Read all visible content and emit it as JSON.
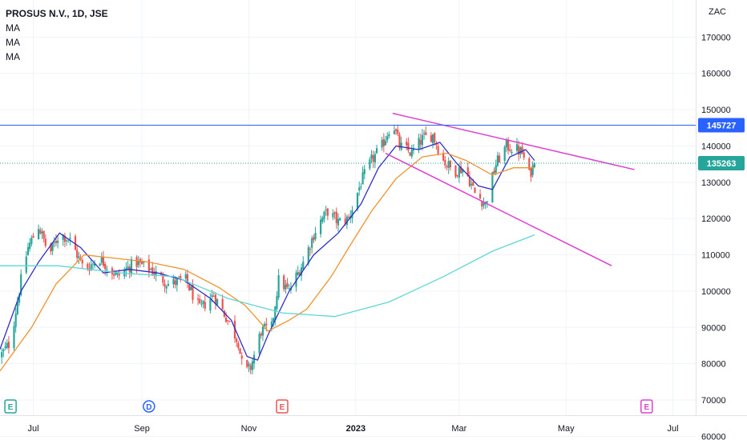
{
  "header": {
    "title": "PROSUS N.V., 1D, JSE",
    "indicators": [
      "MA",
      "MA",
      "MA"
    ]
  },
  "chart_data": {
    "type": "candlestick",
    "currency": "ZAC",
    "y_ticks": [
      60000,
      70000,
      80000,
      90000,
      100000,
      110000,
      120000,
      130000,
      140000,
      150000,
      160000,
      170000
    ],
    "y_range": [
      57000,
      180000
    ],
    "x_labels": [
      {
        "label": "Jul",
        "date": "2022-07-01",
        "bold": false
      },
      {
        "label": "Sep",
        "date": "2022-09-01",
        "bold": false
      },
      {
        "label": "Nov",
        "date": "2022-11-01",
        "bold": false
      },
      {
        "label": "2023",
        "date": "2023-01-01",
        "bold": true
      },
      {
        "label": "Mar",
        "date": "2023-03-01",
        "bold": false
      },
      {
        "label": "May",
        "date": "2023-05-01",
        "bold": false
      },
      {
        "label": "Jul",
        "date": "2023-07-01",
        "bold": false
      }
    ],
    "x_range": [
      "2022-06-12",
      "2023-07-14"
    ],
    "horizontal_line": {
      "value": 145727,
      "label": "145727",
      "color": "#2962ff"
    },
    "last_price": {
      "value": 135263,
      "label": "135263",
      "color": "#26a69a"
    },
    "price_path": [
      [
        "2022-06-12",
        82000
      ],
      [
        "2022-06-18",
        86000
      ],
      [
        "2022-06-24",
        103000
      ],
      [
        "2022-06-28",
        112000
      ],
      [
        "2022-07-04",
        118000
      ],
      [
        "2022-07-10",
        110000
      ],
      [
        "2022-07-16",
        116000
      ],
      [
        "2022-07-22",
        114000
      ],
      [
        "2022-07-30",
        106000
      ],
      [
        "2022-08-08",
        109000
      ],
      [
        "2022-08-18",
        104000
      ],
      [
        "2022-08-28",
        108000
      ],
      [
        "2022-09-06",
        106000
      ],
      [
        "2022-09-16",
        102000
      ],
      [
        "2022-09-26",
        103000
      ],
      [
        "2022-10-04",
        95000
      ],
      [
        "2022-10-12",
        99000
      ],
      [
        "2022-10-20",
        92000
      ],
      [
        "2022-10-26",
        86000
      ],
      [
        "2022-10-29",
        77000
      ],
      [
        "2022-11-02",
        79000
      ],
      [
        "2022-11-08",
        89000
      ],
      [
        "2022-11-14",
        90000
      ],
      [
        "2022-11-18",
        103000
      ],
      [
        "2022-11-24",
        100000
      ],
      [
        "2022-12-02",
        108000
      ],
      [
        "2022-12-10",
        118000
      ],
      [
        "2022-12-16",
        122000
      ],
      [
        "2022-12-22",
        119000
      ],
      [
        "2022-12-28",
        120000
      ],
      [
        "2023-01-04",
        130000
      ],
      [
        "2023-01-10",
        136000
      ],
      [
        "2023-01-16",
        140000
      ],
      [
        "2023-01-22",
        147000
      ],
      [
        "2023-01-26",
        140000
      ],
      [
        "2023-02-02",
        138000
      ],
      [
        "2023-02-08",
        142000
      ],
      [
        "2023-02-14",
        143000
      ],
      [
        "2023-02-20",
        136000
      ],
      [
        "2023-02-26",
        133000
      ],
      [
        "2023-03-04",
        134000
      ],
      [
        "2023-03-10",
        127000
      ],
      [
        "2023-03-16",
        124000
      ],
      [
        "2023-03-22",
        135000
      ],
      [
        "2023-03-28",
        140000
      ],
      [
        "2023-04-03",
        139000
      ],
      [
        "2023-04-06",
        138000
      ],
      [
        "2023-04-10",
        132000
      ],
      [
        "2023-04-13",
        135263
      ]
    ],
    "series": [
      {
        "name": "",
        "color": "#2e2ec6",
        "points": [
          [
            "2022-06-12",
            84000
          ],
          [
            "2022-06-24",
            100000
          ],
          [
            "2022-07-04",
            108000
          ],
          [
            "2022-07-16",
            116000
          ],
          [
            "2022-07-28",
            112000
          ],
          [
            "2022-08-10",
            105000
          ],
          [
            "2022-08-25",
            106000
          ],
          [
            "2022-09-10",
            105000
          ],
          [
            "2022-09-25",
            103000
          ],
          [
            "2022-10-10",
            98000
          ],
          [
            "2022-10-22",
            92000
          ],
          [
            "2022-10-31",
            82000
          ],
          [
            "2022-11-06",
            81000
          ],
          [
            "2022-11-12",
            88000
          ],
          [
            "2022-11-24",
            100000
          ],
          [
            "2022-12-08",
            110000
          ],
          [
            "2022-12-22",
            116000
          ],
          [
            "2023-01-04",
            124000
          ],
          [
            "2023-01-14",
            134000
          ],
          [
            "2023-01-24",
            140000
          ],
          [
            "2023-02-06",
            139000
          ],
          [
            "2023-02-18",
            141000
          ],
          [
            "2023-02-28",
            135000
          ],
          [
            "2023-03-12",
            129000
          ],
          [
            "2023-03-20",
            128000
          ],
          [
            "2023-03-30",
            137000
          ],
          [
            "2023-04-08",
            139000
          ],
          [
            "2023-04-13",
            136000
          ]
        ]
      },
      {
        "name": "",
        "color": "#f0922e",
        "points": [
          [
            "2022-06-12",
            78000
          ],
          [
            "2022-06-30",
            90000
          ],
          [
            "2022-07-14",
            102000
          ],
          [
            "2022-07-30",
            110000
          ],
          [
            "2022-08-18",
            109000
          ],
          [
            "2022-09-05",
            108000
          ],
          [
            "2022-09-25",
            106000
          ],
          [
            "2022-10-15",
            101000
          ],
          [
            "2022-10-30",
            96000
          ],
          [
            "2022-11-12",
            89000
          ],
          [
            "2022-11-24",
            92000
          ],
          [
            "2022-12-04",
            95000
          ],
          [
            "2022-12-18",
            104000
          ],
          [
            "2022-12-28",
            112000
          ],
          [
            "2023-01-10",
            122000
          ],
          [
            "2023-01-24",
            131000
          ],
          [
            "2023-02-08",
            137000
          ],
          [
            "2023-02-22",
            138000
          ],
          [
            "2023-03-05",
            136000
          ],
          [
            "2023-03-20",
            132000
          ],
          [
            "2023-04-01",
            134000
          ],
          [
            "2023-04-13",
            134000
          ]
        ]
      },
      {
        "name": "",
        "color": "#5fd6d6",
        "points": [
          [
            "2022-06-12",
            107000
          ],
          [
            "2022-07-15",
            107000
          ],
          [
            "2022-08-20",
            105000
          ],
          [
            "2022-09-20",
            104000
          ],
          [
            "2022-10-20",
            98000
          ],
          [
            "2022-11-20",
            94000
          ],
          [
            "2022-12-20",
            93000
          ],
          [
            "2023-01-20",
            97000
          ],
          [
            "2023-02-20",
            104000
          ],
          [
            "2023-03-20",
            111000
          ],
          [
            "2023-04-13",
            115500
          ]
        ]
      }
    ],
    "trendlines": [
      {
        "from": [
          "2023-01-22",
          149000
        ],
        "to": [
          "2023-06-09",
          133500
        ],
        "color": "#e040d0"
      },
      {
        "from": [
          "2023-01-18",
          138000
        ],
        "to": [
          "2023-05-27",
          107000
        ],
        "color": "#e040d0"
      }
    ],
    "events": [
      {
        "label": "E",
        "date": "2022-06-18",
        "color": "#26a69a"
      },
      {
        "label": "D",
        "date": "2022-09-05",
        "color": "#2962ff"
      },
      {
        "label": "E",
        "date": "2022-11-20",
        "color": "#ef5350"
      },
      {
        "label": "E",
        "date": "2023-06-16",
        "color": "#e040d0"
      }
    ],
    "colors": {
      "up": "#26a69a",
      "down": "#ef5350",
      "grid": "#f0f3fa",
      "axis_border": "#e0e3eb"
    }
  }
}
